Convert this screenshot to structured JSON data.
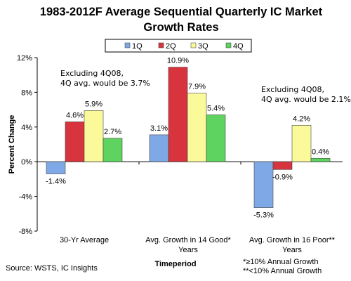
{
  "chart_data": {
    "type": "bar",
    "title_lines": [
      "1983-2012F Average Sequential Quarterly IC Market",
      "Growth Rates"
    ],
    "xlabel": "Timeperiod",
    "ylabel": "Percent Change",
    "ylim": [
      -8,
      12
    ],
    "yticks": [
      "-8%",
      "-4%",
      "0%",
      "4%",
      "8%",
      "12%"
    ],
    "ytick_values": [
      -8,
      -4,
      0,
      4,
      8,
      12
    ],
    "legend_position": "top",
    "categories": [
      [
        "30-Yr Average"
      ],
      [
        "Avg. Growth in 14 Good*",
        "Years"
      ],
      [
        "Avg. Growth in 16 Poor**",
        "Years"
      ]
    ],
    "series": [
      {
        "name": "1Q",
        "color": "#7fa8e6",
        "values": [
          -1.4,
          3.1,
          -5.3
        ],
        "labels": [
          "-1.4%",
          "3.1%",
          "-5.3%"
        ]
      },
      {
        "name": "2Q",
        "color": "#d8343d",
        "values": [
          4.6,
          10.9,
          -0.9
        ],
        "labels": [
          "4.6%",
          "10.9%",
          "-0.9%"
        ]
      },
      {
        "name": "3Q",
        "color": "#fafa9a",
        "values": [
          5.9,
          7.9,
          4.2
        ],
        "labels": [
          "5.9%",
          "7.9%",
          "4.2%"
        ]
      },
      {
        "name": "4Q",
        "color": "#5fd35f",
        "values": [
          2.7,
          5.4,
          0.4
        ],
        "labels": [
          "2.7%",
          "5.4%",
          "0.4%"
        ]
      }
    ],
    "annotations": [
      {
        "lines": [
          "Excluding 4Q08,",
          "4Q avg. would be 3.7%"
        ]
      },
      {
        "lines": [
          "Excluding 4Q08,",
          "4Q avg. would be 2.1%"
        ]
      }
    ],
    "source": "Source: WSTS, IC Insights",
    "footnotes": [
      "*≥10% Annual Growth",
      "**<10% Annual Growth"
    ]
  }
}
